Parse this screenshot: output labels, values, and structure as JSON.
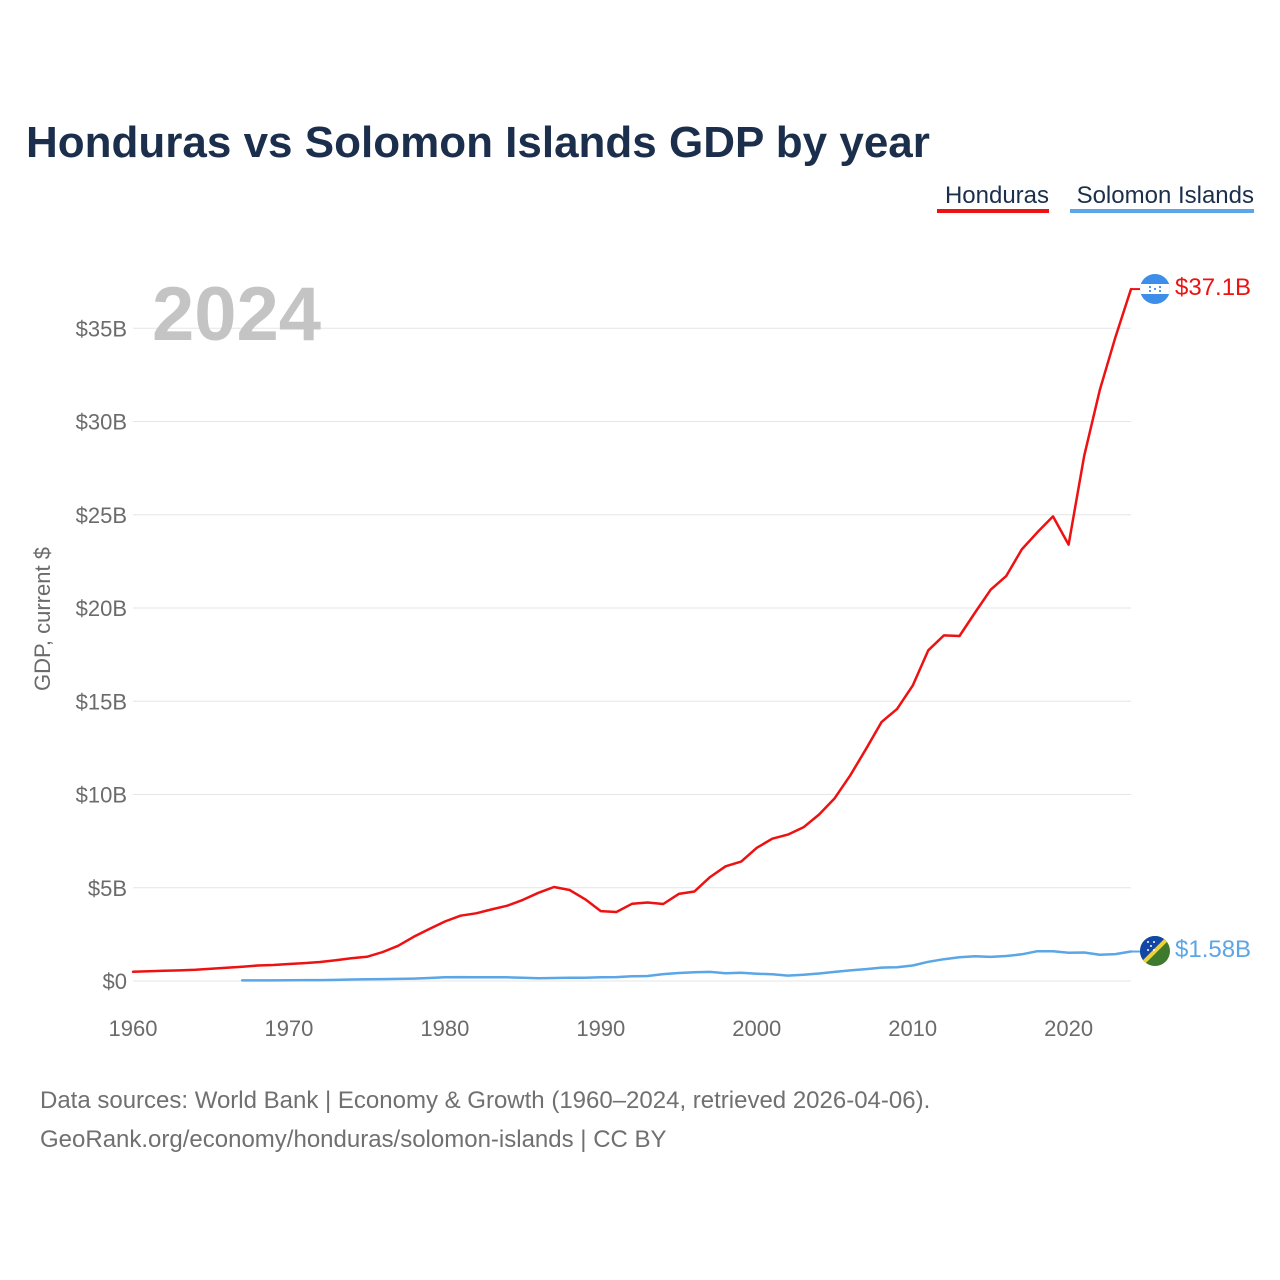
{
  "title": "Honduras vs Solomon Islands GDP by year",
  "year_label": "2024",
  "source_lines": [
    "Data sources: World Bank | Economy & Growth (1960–2024, retrieved 2026-04-06).",
    "GeoRank.org/economy/honduras/solomon-islands | CC BY"
  ],
  "chart_data": {
    "type": "line",
    "title": "Honduras vs Solomon Islands GDP by year",
    "xlabel": "",
    "ylabel": "GDP, current $",
    "xlim": [
      1960,
      2024
    ],
    "ylim": [
      0,
      37.5
    ],
    "unit": "billion current US$",
    "grid": true,
    "legend_position": "top-right",
    "x_ticks": [
      1960,
      1970,
      1980,
      1990,
      2000,
      2010,
      2020
    ],
    "x_tick_labels": [
      "1960",
      "1970",
      "1980",
      "1990",
      "2000",
      "2010",
      "2020"
    ],
    "y_ticks": [
      0,
      5,
      10,
      15,
      20,
      25,
      30,
      35
    ],
    "y_tick_labels": [
      "$0",
      "$5B",
      "$10B",
      "$15B",
      "$20B",
      "$25B",
      "$30B",
      "$35B"
    ],
    "series": [
      {
        "name": "Honduras",
        "color": "#ee1111",
        "end_label": "$37.1B",
        "flag_icon": "honduras-flag-icon",
        "x": [
          1960,
          1961,
          1962,
          1963,
          1964,
          1965,
          1966,
          1967,
          1968,
          1969,
          1970,
          1971,
          1972,
          1973,
          1974,
          1975,
          1976,
          1977,
          1978,
          1979,
          1980,
          1981,
          1982,
          1983,
          1984,
          1985,
          1986,
          1987,
          1988,
          1989,
          1990,
          1991,
          1992,
          1993,
          1994,
          1995,
          1996,
          1997,
          1998,
          1999,
          2000,
          2001,
          2002,
          2003,
          2004,
          2005,
          2006,
          2007,
          2008,
          2009,
          2010,
          2011,
          2012,
          2013,
          2014,
          2015,
          2016,
          2017,
          2018,
          2019,
          2020,
          2021,
          2022,
          2023,
          2024
        ],
        "values": [
          0.5,
          0.52,
          0.55,
          0.57,
          0.6,
          0.66,
          0.71,
          0.76,
          0.83,
          0.86,
          0.91,
          0.96,
          1.02,
          1.11,
          1.22,
          1.3,
          1.55,
          1.89,
          2.37,
          2.79,
          3.19,
          3.5,
          3.63,
          3.84,
          4.04,
          4.35,
          4.73,
          5.04,
          4.88,
          4.38,
          3.75,
          3.7,
          4.14,
          4.21,
          4.13,
          4.67,
          4.8,
          5.57,
          6.15,
          6.4,
          7.14,
          7.63,
          7.85,
          8.24,
          8.93,
          9.8,
          11.03,
          12.43,
          13.88,
          14.59,
          15.84,
          17.73,
          18.53,
          18.5,
          19.76,
          20.98,
          21.72,
          23.14,
          24.06,
          24.91,
          23.4,
          28.16,
          31.69,
          34.52,
          37.1
        ]
      },
      {
        "name": "Solomon Islands",
        "color": "#5aa6e6",
        "end_label": "$1.58B",
        "flag_icon": "solomon-islands-flag-icon",
        "x": [
          1967,
          1968,
          1969,
          1970,
          1971,
          1972,
          1973,
          1974,
          1975,
          1976,
          1977,
          1978,
          1979,
          1980,
          1981,
          1982,
          1983,
          1984,
          1985,
          1986,
          1987,
          1988,
          1989,
          1990,
          1991,
          1992,
          1993,
          1994,
          1995,
          1996,
          1997,
          1998,
          1999,
          2000,
          2001,
          2002,
          2003,
          2004,
          2005,
          2006,
          2007,
          2008,
          2009,
          2010,
          2011,
          2012,
          2013,
          2014,
          2015,
          2016,
          2017,
          2018,
          2019,
          2020,
          2021,
          2022,
          2023,
          2024
        ],
        "values": [
          0.03,
          0.03,
          0.03,
          0.04,
          0.05,
          0.05,
          0.06,
          0.08,
          0.09,
          0.1,
          0.11,
          0.13,
          0.16,
          0.2,
          0.21,
          0.2,
          0.2,
          0.2,
          0.17,
          0.15,
          0.16,
          0.17,
          0.17,
          0.2,
          0.21,
          0.25,
          0.27,
          0.37,
          0.43,
          0.47,
          0.49,
          0.42,
          0.44,
          0.39,
          0.36,
          0.29,
          0.34,
          0.4,
          0.49,
          0.57,
          0.64,
          0.72,
          0.74,
          0.83,
          1.03,
          1.17,
          1.27,
          1.33,
          1.29,
          1.34,
          1.43,
          1.6,
          1.6,
          1.52,
          1.53,
          1.41,
          1.44,
          1.58
        ]
      }
    ]
  }
}
